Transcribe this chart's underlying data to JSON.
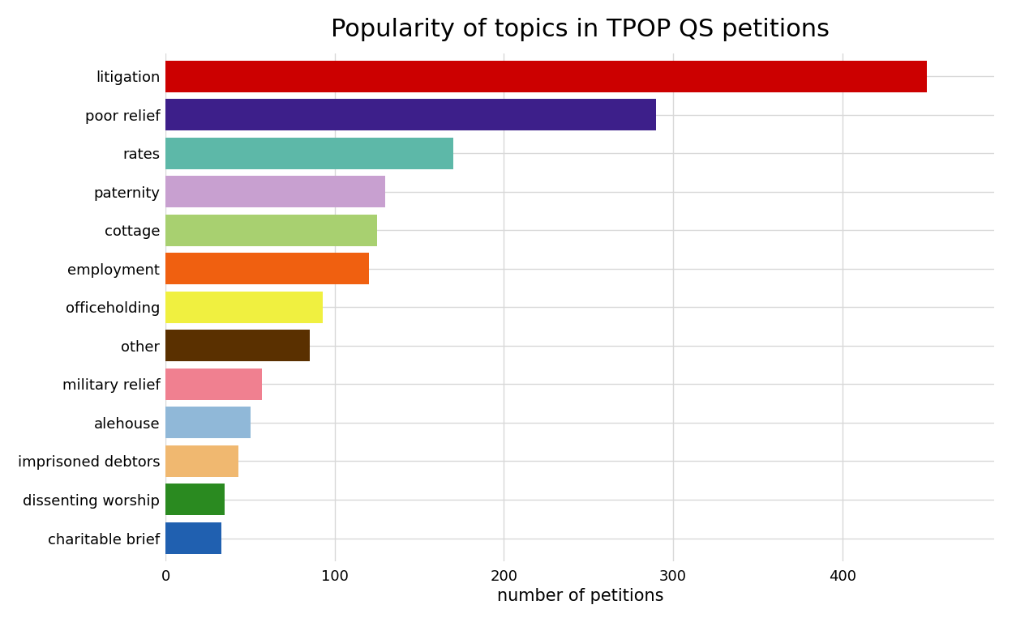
{
  "title": "Popularity of topics in TPOP QS petitions",
  "xlabel": "number of petitions",
  "categories": [
    "litigation",
    "poor relief",
    "rates",
    "paternity",
    "cottage",
    "employment",
    "officeholding",
    "other",
    "military relief",
    "alehouse",
    "imprisoned debtors",
    "dissenting worship",
    "charitable brief"
  ],
  "values": [
    450,
    290,
    170,
    130,
    125,
    120,
    93,
    85,
    57,
    50,
    43,
    35,
    33
  ],
  "colors": [
    "#cc0000",
    "#3d1f8a",
    "#5db8a8",
    "#c8a0d0",
    "#a8d070",
    "#f06010",
    "#f0f040",
    "#5a3000",
    "#f08090",
    "#90b8d8",
    "#f0b870",
    "#2a8a20",
    "#2060b0"
  ],
  "background_color": "#ffffff",
  "grid_color": "#d8d8d8",
  "title_fontsize": 22,
  "label_fontsize": 15,
  "tick_fontsize": 13,
  "bar_height": 0.82,
  "xlim": [
    0,
    490
  ],
  "figure_width": 12.48,
  "figure_height": 7.68,
  "dpi": 100
}
